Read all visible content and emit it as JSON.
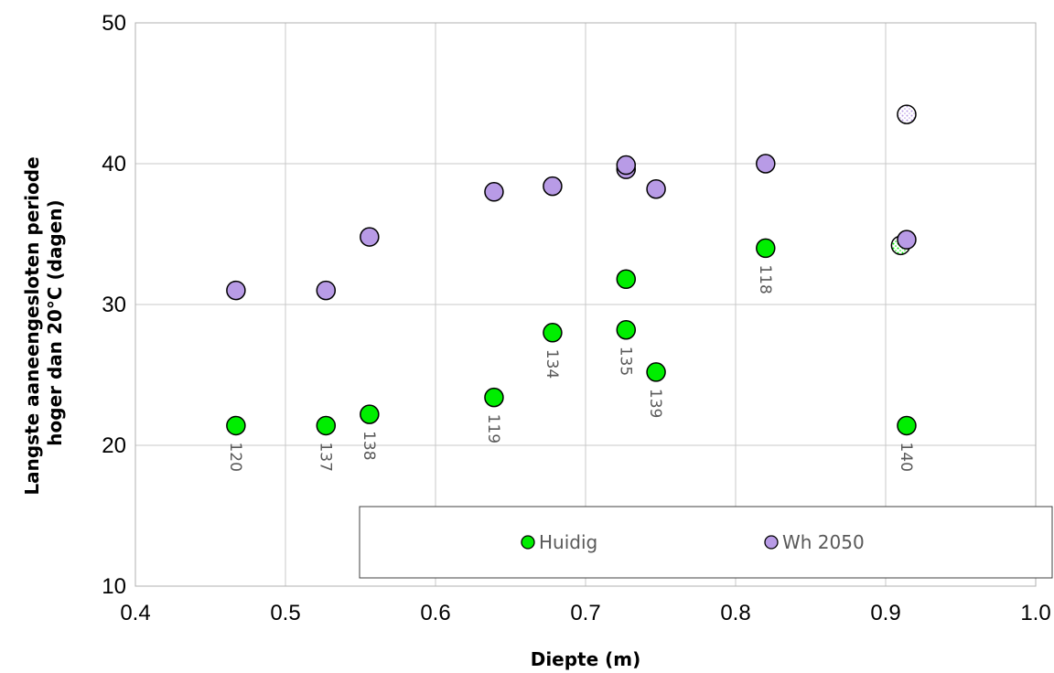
{
  "chart_data": {
    "type": "scatter",
    "xlabel": "Diepte (m)",
    "ylabel_lines": [
      "Langste aaneengesloten periode",
      "hoger dan 20°C (dagen)"
    ],
    "xlim": [
      0.4,
      1.0
    ],
    "ylim": [
      10,
      50
    ],
    "xticks": [
      "0.4",
      "0.5",
      "0.6",
      "0.7",
      "0.8",
      "0.9",
      "1.0"
    ],
    "yticks": [
      "10",
      "20",
      "30",
      "40",
      "50"
    ],
    "grid": true,
    "legend_placement": "bottom-right",
    "series": [
      {
        "name": "Huidig",
        "color": "#00ee00",
        "points": [
          {
            "x": 0.467,
            "y": 21.4,
            "label": "120"
          },
          {
            "x": 0.527,
            "y": 21.4,
            "label": "137"
          },
          {
            "x": 0.556,
            "y": 22.2,
            "label": "138"
          },
          {
            "x": 0.639,
            "y": 23.4,
            "label": "119"
          },
          {
            "x": 0.678,
            "y": 28.0,
            "label": "134"
          },
          {
            "x": 0.727,
            "y": 28.2,
            "label": "135"
          },
          {
            "x": 0.727,
            "y": 31.8,
            "label": ""
          },
          {
            "x": 0.747,
            "y": 25.2,
            "label": "139"
          },
          {
            "x": 0.82,
            "y": 34.0,
            "label": "118"
          },
          {
            "x": 0.914,
            "y": 21.4,
            "label": "140"
          },
          {
            "x": 0.91,
            "y": 34.2,
            "label": "",
            "pattern": "dotted"
          }
        ]
      },
      {
        "name": "Wh 2050",
        "color": "#b89be6",
        "points": [
          {
            "x": 0.467,
            "y": 31.0
          },
          {
            "x": 0.527,
            "y": 31.0
          },
          {
            "x": 0.556,
            "y": 34.8
          },
          {
            "x": 0.639,
            "y": 38.0
          },
          {
            "x": 0.678,
            "y": 38.4
          },
          {
            "x": 0.727,
            "y": 39.6
          },
          {
            "x": 0.727,
            "y": 39.9
          },
          {
            "x": 0.747,
            "y": 38.2
          },
          {
            "x": 0.82,
            "y": 40.0
          },
          {
            "x": 0.914,
            "y": 34.6
          },
          {
            "x": 0.914,
            "y": 43.5,
            "pattern": "dotted"
          }
        ]
      }
    ]
  }
}
